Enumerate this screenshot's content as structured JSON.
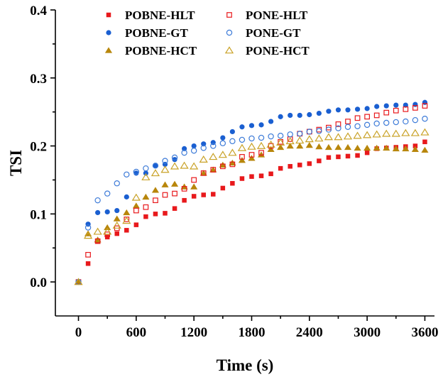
{
  "chart_data": {
    "type": "scatter",
    "title": "",
    "xlabel": "Time (s)",
    "ylabel": "TSI",
    "xlim": [
      -240,
      3700
    ],
    "ylim": [
      -0.05,
      0.4
    ],
    "xticks": [
      0,
      600,
      1200,
      1800,
      2400,
      3000,
      3600
    ],
    "xtick_labels": [
      "0",
      "600",
      "1200",
      "1800",
      "2400",
      "3000",
      "3600"
    ],
    "yticks": [
      0.0,
      0.1,
      0.2,
      0.3,
      0.4
    ],
    "ytick_labels": [
      "0.0",
      "0.1",
      "0.2",
      "0.3",
      "0.4"
    ],
    "x": [
      0,
      100,
      200,
      300,
      400,
      500,
      600,
      700,
      800,
      900,
      1000,
      1100,
      1200,
      1300,
      1400,
      1500,
      1600,
      1700,
      1800,
      1900,
      2000,
      2100,
      2200,
      2300,
      2400,
      2500,
      2600,
      2700,
      2800,
      2900,
      3000,
      3100,
      3200,
      3300,
      3400,
      3500,
      3600
    ],
    "series": [
      {
        "name": "POBNE-HLT",
        "marker": "square",
        "filled": true,
        "color": "#e8191c",
        "values": [
          0.0,
          0.027,
          0.06,
          0.066,
          0.071,
          0.076,
          0.084,
          0.096,
          0.1,
          0.101,
          0.108,
          0.12,
          0.126,
          0.128,
          0.129,
          0.138,
          0.145,
          0.152,
          0.155,
          0.156,
          0.159,
          0.167,
          0.17,
          0.172,
          0.174,
          0.178,
          0.183,
          0.184,
          0.185,
          0.186,
          0.19,
          0.196,
          0.197,
          0.198,
          0.199,
          0.2,
          0.206
        ]
      },
      {
        "name": "POBNE-GT",
        "marker": "circle",
        "filled": true,
        "color": "#1a5fd1",
        "values": [
          0.0,
          0.085,
          0.102,
          0.103,
          0.105,
          0.125,
          0.16,
          0.16,
          0.171,
          0.173,
          0.18,
          0.196,
          0.2,
          0.203,
          0.205,
          0.212,
          0.221,
          0.228,
          0.23,
          0.231,
          0.236,
          0.243,
          0.245,
          0.245,
          0.246,
          0.248,
          0.251,
          0.253,
          0.253,
          0.254,
          0.255,
          0.258,
          0.259,
          0.26,
          0.26,
          0.261,
          0.264
        ]
      },
      {
        "name": "POBNE-HCT",
        "marker": "triangle",
        "filled": true,
        "color": "#b8860b",
        "values": [
          0.0,
          0.071,
          0.062,
          0.08,
          0.093,
          0.102,
          0.112,
          0.125,
          0.135,
          0.143,
          0.144,
          0.14,
          0.14,
          0.16,
          0.165,
          0.172,
          0.175,
          0.179,
          0.182,
          0.187,
          0.195,
          0.198,
          0.2,
          0.2,
          0.201,
          0.199,
          0.198,
          0.198,
          0.198,
          0.197,
          0.197,
          0.197,
          0.197,
          0.196,
          0.196,
          0.195,
          0.194
        ]
      },
      {
        "name": "PONE-HLT",
        "marker": "square",
        "filled": false,
        "color": "#e8191c",
        "values": [
          0.0,
          0.04,
          0.06,
          0.07,
          0.079,
          0.092,
          0.105,
          0.11,
          0.12,
          0.128,
          0.13,
          0.137,
          0.15,
          0.16,
          0.165,
          0.17,
          0.173,
          0.184,
          0.187,
          0.19,
          0.2,
          0.206,
          0.21,
          0.218,
          0.221,
          0.224,
          0.227,
          0.232,
          0.236,
          0.241,
          0.243,
          0.245,
          0.249,
          0.252,
          0.254,
          0.256,
          0.259
        ]
      },
      {
        "name": "PONE-GT",
        "marker": "circle",
        "filled": false,
        "color": "#3d7bd8",
        "values": [
          0.0,
          0.08,
          0.12,
          0.13,
          0.145,
          0.158,
          0.162,
          0.167,
          0.171,
          0.178,
          0.183,
          0.19,
          0.193,
          0.197,
          0.2,
          0.204,
          0.207,
          0.209,
          0.211,
          0.212,
          0.214,
          0.215,
          0.217,
          0.218,
          0.221,
          0.222,
          0.224,
          0.226,
          0.228,
          0.229,
          0.231,
          0.233,
          0.234,
          0.235,
          0.236,
          0.238,
          0.24
        ]
      },
      {
        "name": "PONE-HCT",
        "marker": "triangle",
        "filled": false,
        "color": "#c9a227",
        "values": [
          0.0,
          0.068,
          0.074,
          0.074,
          0.083,
          0.09,
          0.124,
          0.154,
          0.16,
          0.165,
          0.17,
          0.171,
          0.17,
          0.18,
          0.184,
          0.187,
          0.19,
          0.197,
          0.199,
          0.2,
          0.202,
          0.205,
          0.207,
          0.208,
          0.21,
          0.211,
          0.213,
          0.213,
          0.214,
          0.215,
          0.216,
          0.217,
          0.218,
          0.218,
          0.219,
          0.219,
          0.22
        ]
      }
    ],
    "grid": false,
    "legend_position": "top-left"
  }
}
